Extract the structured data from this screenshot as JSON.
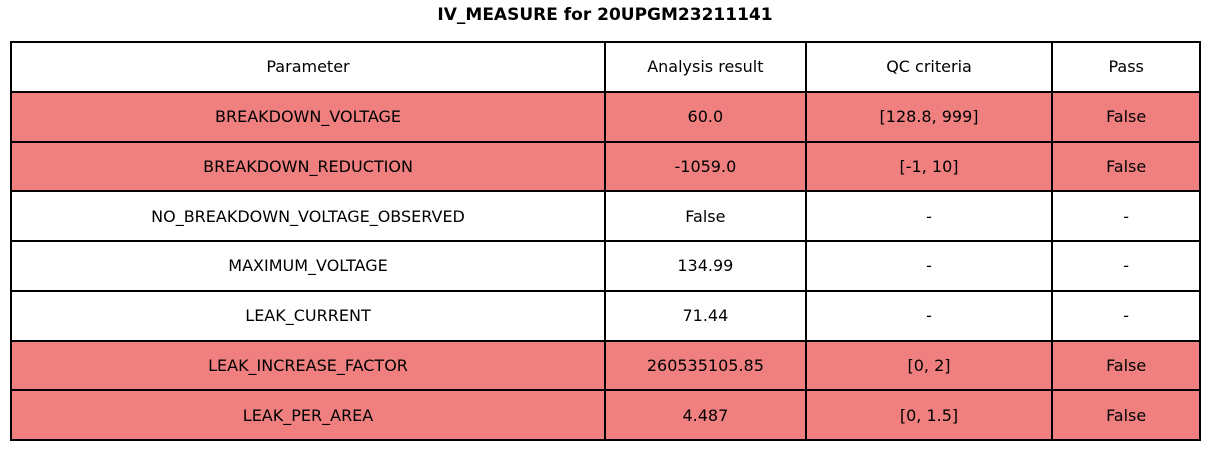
{
  "chart_data": {
    "type": "table",
    "title": "IV_MEASURE for 20UPGM23211141",
    "columns": [
      "Parameter",
      "Analysis result",
      "QC criteria",
      "Pass"
    ],
    "rows": [
      [
        "BREAKDOWN_VOLTAGE",
        "60.0",
        "[128.8, 999]",
        "False"
      ],
      [
        "BREAKDOWN_REDUCTION",
        "-1059.0",
        "[-1, 10]",
        "False"
      ],
      [
        "NO_BREAKDOWN_VOLTAGE_OBSERVED",
        "False",
        "-",
        "-"
      ],
      [
        "MAXIMUM_VOLTAGE",
        "134.99",
        "-",
        "-"
      ],
      [
        "LEAK_CURRENT",
        "71.44",
        "-",
        "-"
      ],
      [
        "LEAK_INCREASE_FACTOR",
        "260535105.85",
        "[0, 2]",
        "False"
      ],
      [
        "LEAK_PER_AREA",
        "4.487",
        "[0, 1.5]",
        "False"
      ]
    ],
    "row_highlight": [
      "fail",
      "fail",
      "none",
      "none",
      "none",
      "fail",
      "fail"
    ],
    "colors": {
      "fail_row_bg": "#f08080",
      "normal_row_bg": "#ffffff",
      "border": "#000000",
      "text": "#000000"
    },
    "layout": {
      "legend": "none",
      "grid": "full-borders",
      "header_position": "top"
    }
  }
}
